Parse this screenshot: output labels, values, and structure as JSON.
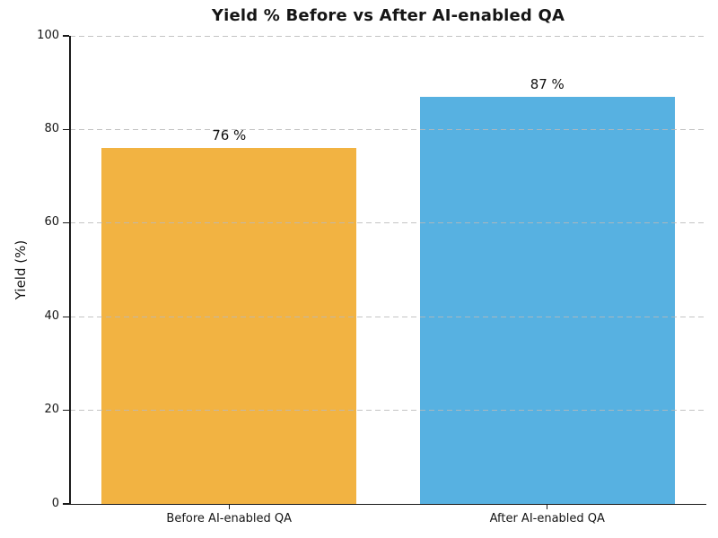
{
  "chart_data": {
    "type": "bar",
    "title": "Yield % Before vs After AI-enabled QA",
    "xlabel": "",
    "ylabel": "Yield (%)",
    "categories": [
      "Before AI-enabled QA",
      "After AI-enabled QA"
    ],
    "values": [
      76,
      87
    ],
    "bar_labels": [
      "76 %",
      "87 %"
    ],
    "bar_colors": [
      "#F2B342",
      "#57B1E1"
    ],
    "ylim": [
      0,
      100
    ],
    "yticks": [
      0,
      20,
      40,
      60,
      80,
      100
    ],
    "ytick_labels": [
      "0",
      "20",
      "40",
      "60",
      "80",
      "100"
    ],
    "grid": "horizontal-dashed",
    "grid_over_bars": true,
    "legend": "none"
  },
  "colors": {
    "background": "#ffffff",
    "grid": "#b9b9b9",
    "axis": "#1a1a1a",
    "text": "#151515"
  }
}
